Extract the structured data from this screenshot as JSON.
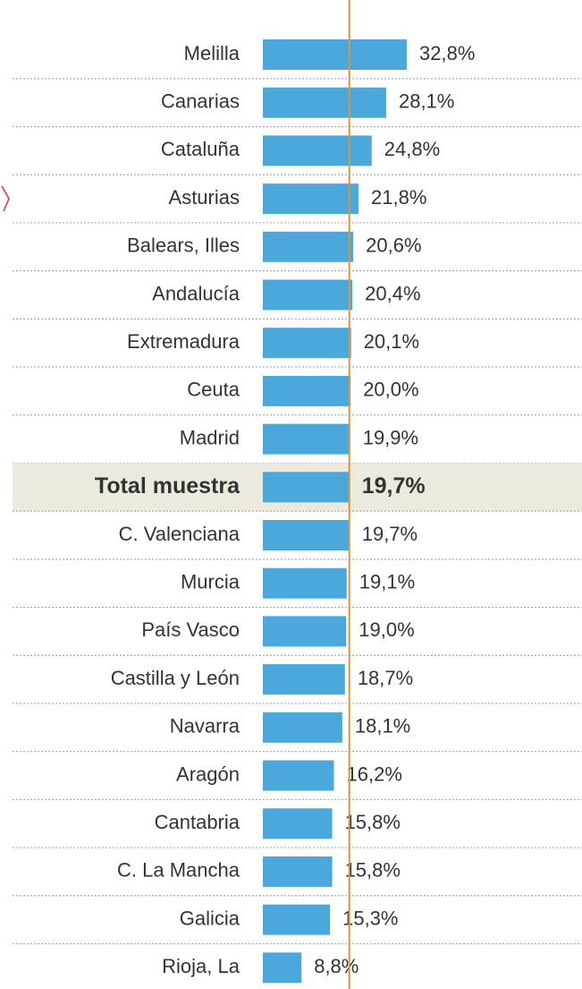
{
  "chart_data": {
    "type": "bar",
    "orientation": "horizontal",
    "categories": [
      "Melilla",
      "Canarias",
      "Cataluña",
      "Asturias",
      "Balears, Illes",
      "Andalucía",
      "Extremadura",
      "Ceuta",
      "Madrid",
      "Total muestra",
      "C. Valenciana",
      "Murcia",
      "País Vasco",
      "Castilla y León",
      "Navarra",
      "Aragón",
      "Cantabria",
      "C. La Mancha",
      "Galicia",
      "Rioja, La"
    ],
    "values": [
      32.8,
      28.1,
      24.8,
      21.8,
      20.6,
      20.4,
      20.1,
      20.0,
      19.9,
      19.7,
      19.7,
      19.1,
      19.0,
      18.7,
      18.1,
      16.2,
      15.8,
      15.8,
      15.3,
      8.8
    ],
    "value_labels": [
      "32,8%",
      "28,1%",
      "24,8%",
      "21,8%",
      "20,6%",
      "20,4%",
      "20,1%",
      "20,0%",
      "19,9%",
      "19,7%",
      "19,7%",
      "19,1%",
      "19,0%",
      "18,7%",
      "18,1%",
      "16,2%",
      "15,8%",
      "15,8%",
      "15,3%",
      "8,8%"
    ],
    "color": "#4aa8dc",
    "highlight_category": "Total muestra",
    "highlight_color": "#ece9df",
    "reference_line_color": "#d9953f"
  }
}
